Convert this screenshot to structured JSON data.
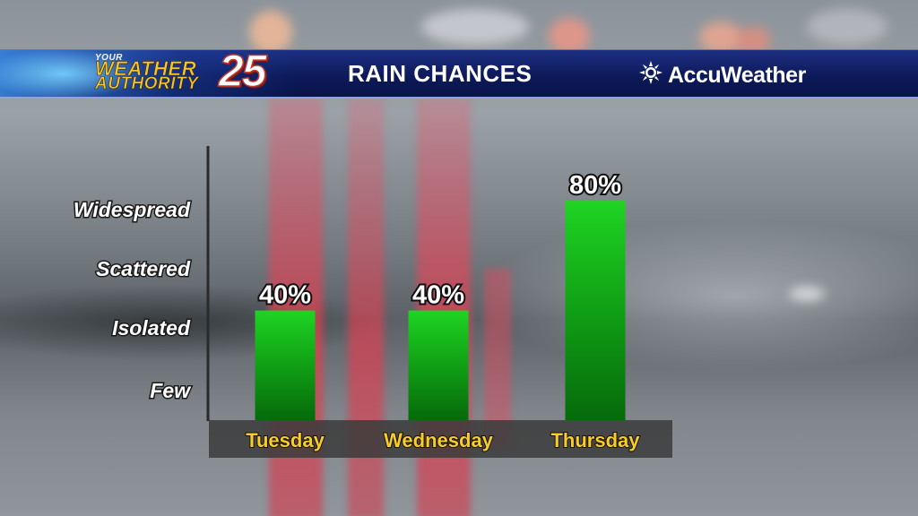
{
  "banner": {
    "logo": {
      "line1": "YOUR",
      "line2": "WEATHER",
      "line3": "AUTHORITY",
      "number": "25"
    },
    "title": "RAIN CHANCES",
    "brand": {
      "name": "AccuWeather",
      "icon": "sun-icon"
    }
  },
  "colors": {
    "banner": "#0d1a5a",
    "bar": "#11b81a",
    "category_text": "#f6cd2a",
    "label_text": "#ffffff"
  },
  "chart_data": {
    "type": "bar",
    "categories": [
      "Tuesday",
      "Wednesday",
      "Thursday"
    ],
    "values": [
      40,
      40,
      80
    ],
    "value_labels": [
      "40%",
      "40%",
      "80%"
    ],
    "y_levels": [
      "Few",
      "Isolated",
      "Scattered",
      "Widespread"
    ],
    "ylim": [
      0,
      100
    ],
    "grid": false,
    "legend": "none"
  }
}
